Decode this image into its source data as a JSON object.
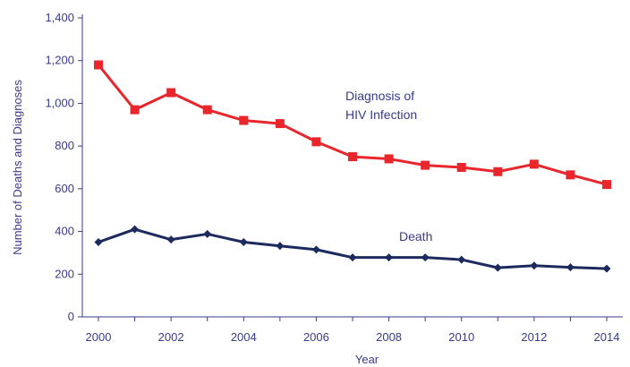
{
  "chart_data": {
    "type": "line",
    "title": "",
    "xlabel": "Year",
    "ylabel": "Number of Deaths and Diagnoses",
    "ylim": [
      0,
      1400
    ],
    "xlim": [
      2000,
      2014
    ],
    "x_ticks": [
      "2000",
      "2002",
      "2004",
      "2006",
      "2008",
      "2010",
      "2012",
      "2014"
    ],
    "y_ticks": [
      "0",
      "200",
      "400",
      "600",
      "800",
      "1,000",
      "1,200",
      "1,400"
    ],
    "x": [
      2000,
      2001,
      2002,
      2003,
      2004,
      2005,
      2006,
      2007,
      2008,
      2009,
      2010,
      2011,
      2012,
      2013,
      2014
    ],
    "grid": false,
    "series": [
      {
        "name": "Diagnosis of HIV Infection",
        "color": "#e8262c",
        "marker": "square",
        "values": [
          1180,
          970,
          1050,
          970,
          920,
          905,
          820,
          750,
          740,
          710,
          700,
          680,
          715,
          665,
          620
        ]
      },
      {
        "name": "Death",
        "color": "#1c2a5e",
        "marker": "diamond",
        "values": [
          350,
          410,
          362,
          388,
          350,
          332,
          315,
          278,
          278,
          278,
          268,
          230,
          240,
          232,
          226
        ]
      }
    ],
    "annotations": [
      {
        "series": 0,
        "lines": [
          "Diagnosis of",
          "HIV Infection"
        ]
      },
      {
        "series": 1,
        "lines": [
          "Death"
        ]
      }
    ]
  }
}
